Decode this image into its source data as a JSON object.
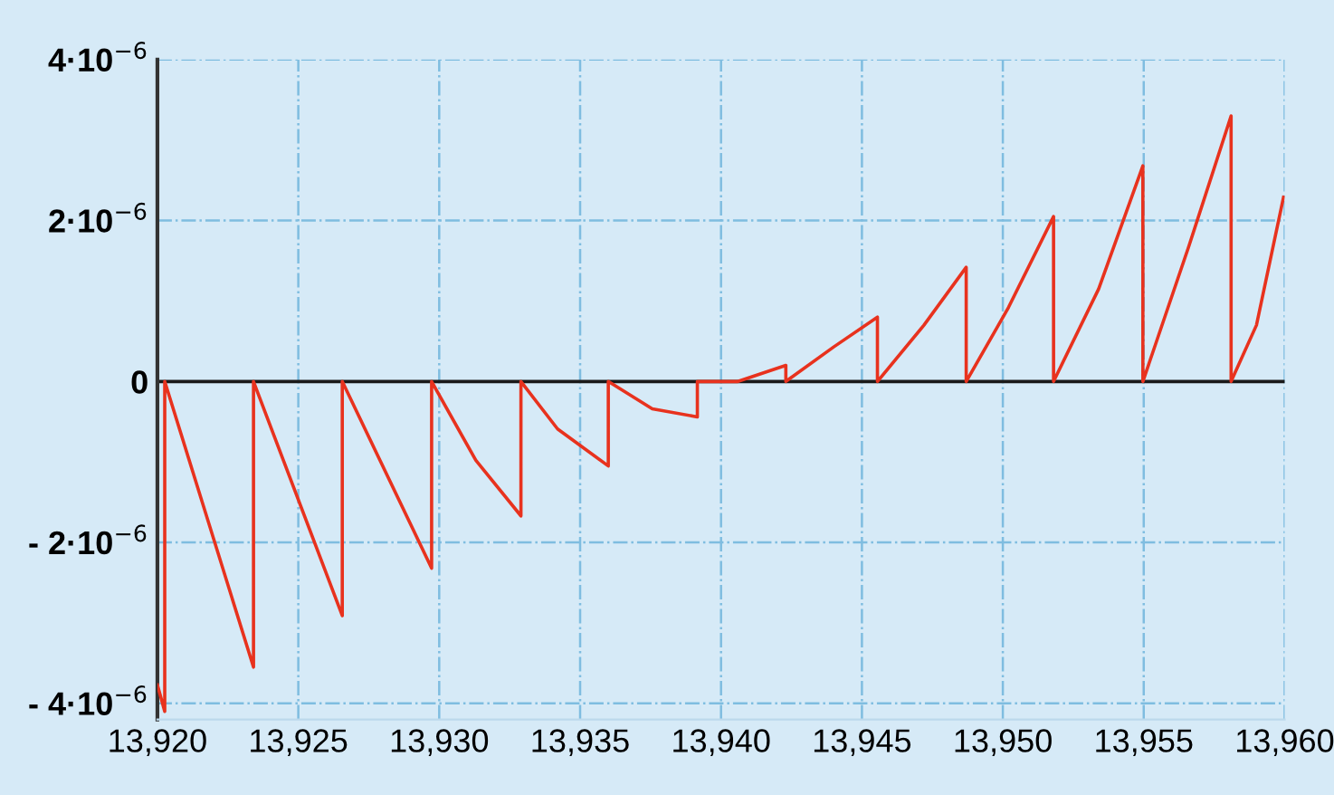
{
  "chart_data": {
    "type": "line",
    "x": [
      13920,
      13920.26,
      13920.26,
      13923.41,
      13923.41,
      13926.56,
      13926.56,
      13929.73,
      13929.73,
      13931.3,
      13932.9,
      13932.9,
      13934.2,
      13936.0,
      13936.0,
      13937.56,
      13939.16,
      13939.16,
      13940.6,
      13942.3,
      13942.3,
      13944.0,
      13945.55,
      13945.55,
      13947.2,
      13948.7,
      13948.7,
      13950.2,
      13951.8,
      13951.8,
      13953.4,
      13954.97,
      13954.97,
      13956.6,
      13958.1,
      13958.1,
      13959.0,
      13959.96
    ],
    "series": [
      {
        "color": "#e8321e",
        "values": [
          -3.77e-06,
          -4.1e-06,
          0,
          -3.55e-06,
          0,
          -2.91e-06,
          0,
          -2.32e-06,
          0,
          -9.8e-07,
          -1.67e-06,
          0,
          -5.9e-07,
          -1.05e-06,
          0,
          -3.4e-07,
          -4.4e-07,
          0,
          0,
          2e-07,
          0,
          4.3e-07,
          8e-07,
          0,
          7e-07,
          1.42e-06,
          0,
          9.2e-07,
          2.05e-06,
          0,
          1.15e-06,
          2.68e-06,
          0,
          1.68e-06,
          3.3e-06,
          0,
          7e-07,
          2.29e-06
        ]
      }
    ],
    "xlim": [
      13920,
      13960
    ],
    "ylim": [
      -4.2e-06,
      4e-06
    ],
    "xticks": [
      {
        "value": 13920,
        "label": "13,920"
      },
      {
        "value": 13925,
        "label": "13,925"
      },
      {
        "value": 13930,
        "label": "13,930"
      },
      {
        "value": 13935,
        "label": "13,935"
      },
      {
        "value": 13940,
        "label": "13,940"
      },
      {
        "value": 13945,
        "label": "13,945"
      },
      {
        "value": 13950,
        "label": "13,950"
      },
      {
        "value": 13955,
        "label": "13,955"
      },
      {
        "value": 13960,
        "label": "13,960"
      }
    ],
    "yticks": [
      {
        "value": -4e-06,
        "label": "- 4·10$^{−6}$"
      },
      {
        "value": -2e-06,
        "label": "- 2·10$^{−6}$"
      },
      {
        "value": 0,
        "label": "0"
      },
      {
        "value": 2e-06,
        "label": "2·10$^{−6}$"
      },
      {
        "value": 4e-06,
        "label": "4·10$^{−6}$"
      }
    ],
    "ref_lines": [
      {
        "axis": "y",
        "value": 0,
        "color": "#1a1a1a"
      }
    ],
    "grid": true,
    "marker": "none",
    "line_style": "solid"
  }
}
